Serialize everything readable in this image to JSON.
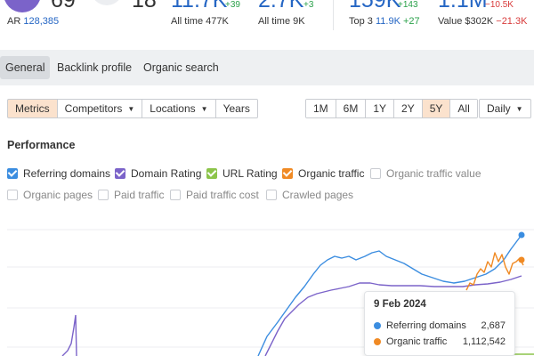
{
  "stats": {
    "domain_rating": "69",
    "ar_label": "AR",
    "ar_value": "128,385",
    "url_rating": "18",
    "backlinks": {
      "value": "11.7K",
      "delta": "+39",
      "alltime_label": "All time",
      "alltime_value": "477K"
    },
    "referring_domains": {
      "value": "2.7K",
      "delta": "+3",
      "alltime_label": "All time",
      "alltime_value": "9K"
    },
    "keywords": {
      "value": "159K",
      "delta": "+143",
      "top3_label": "Top 3",
      "top3_value": "11.9K",
      "top3_delta": "+27"
    },
    "traffic": {
      "value": "1.1M",
      "delta": "−10.5K",
      "value_label": "Value",
      "value_amount": "$302K",
      "value_delta": "−21.3K"
    }
  },
  "tabs": [
    "General",
    "Backlink profile",
    "Organic search"
  ],
  "controls": {
    "metrics": "Metrics",
    "competitors": "Competitors",
    "locations": "Locations",
    "years": "Years",
    "ranges": [
      "1M",
      "6M",
      "1Y",
      "2Y",
      "5Y",
      "All"
    ],
    "active_range": "5Y",
    "interval": "Daily"
  },
  "section_title": "Performance",
  "legend": {
    "referring_domains": "Referring domains",
    "domain_rating": "Domain Rating",
    "url_rating": "URL Rating",
    "organic_traffic": "Organic traffic",
    "organic_traffic_value": "Organic traffic value",
    "organic_pages": "Organic pages",
    "paid_traffic": "Paid traffic",
    "paid_traffic_cost": "Paid traffic cost",
    "crawled_pages": "Crawled pages"
  },
  "colors": {
    "referring_domains": "#3b8de0",
    "domain_rating": "#7b63c9",
    "url_rating": "#8cc44a",
    "organic_traffic": "#f08a24",
    "accent": "#fbe2cd"
  },
  "tooltip": {
    "date": "9 Feb 2024",
    "rows": [
      {
        "label": "Referring domains",
        "value": "2,687"
      },
      {
        "label": "Organic traffic",
        "value": "1,112,542"
      }
    ]
  }
}
